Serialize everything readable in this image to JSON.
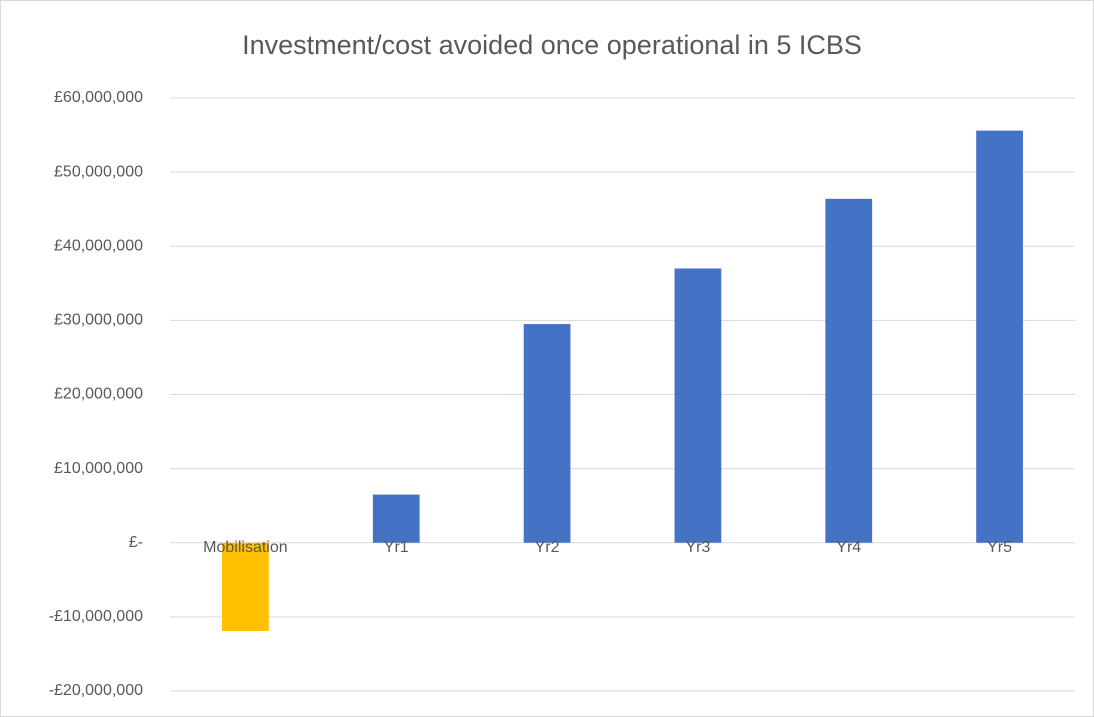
{
  "chart_data": {
    "type": "bar",
    "title": "Investment/cost avoided once operational in 5 ICBS",
    "categories": [
      "Mobilisation",
      "Yr1",
      "Yr2",
      "Yr3",
      "Yr4",
      "Yr5"
    ],
    "values": [
      -11900000,
      6500000,
      29500000,
      37000000,
      46400000,
      55600000
    ],
    "colors": [
      "#ffc000",
      "#4472c4",
      "#4472c4",
      "#4472c4",
      "#4472c4",
      "#4472c4"
    ],
    "ylim": [
      -20000000,
      60000000
    ],
    "yticks": [
      {
        "value": -20000000,
        "label": "-£20,000,000"
      },
      {
        "value": -10000000,
        "label": "-£10,000,000"
      },
      {
        "value": 0,
        "label": "£-"
      },
      {
        "value": 10000000,
        "label": "£10,000,000"
      },
      {
        "value": 20000000,
        "label": "£20,000,000"
      },
      {
        "value": 30000000,
        "label": "£30,000,000"
      },
      {
        "value": 40000000,
        "label": "£40,000,000"
      },
      {
        "value": 50000000,
        "label": "£50,000,000"
      },
      {
        "value": 60000000,
        "label": "£60,000,000"
      }
    ],
    "grid": true
  }
}
